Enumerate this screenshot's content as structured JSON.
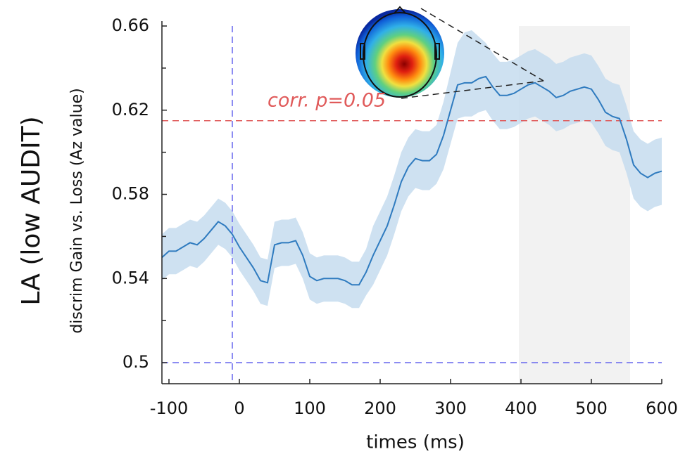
{
  "chart_data": {
    "type": "line",
    "title": "LA (low AUDIT)",
    "ylabel": "discrim Gain vs. Loss (Az value)",
    "xlabel": "times (ms)",
    "annotation": "corr. p=0.05",
    "xlim": [
      -110,
      600
    ],
    "xticks": [
      -100,
      0,
      100,
      200,
      300,
      400,
      500,
      600
    ],
    "ylim": [
      0.49,
      0.66
    ],
    "yticks": [
      0.5,
      0.54,
      0.58,
      0.62,
      0.66
    ],
    "yminor": [
      0.52,
      0.56,
      0.6,
      0.64
    ],
    "hlines": [
      {
        "value": 0.615,
        "color": "#e05a5a"
      },
      {
        "value": 0.5,
        "color": "#6666ee"
      }
    ],
    "vlines": [
      {
        "value": -10,
        "color": "#6666ee"
      }
    ],
    "shaded": {
      "range": [
        397,
        555
      ],
      "color": "#f2f2f2"
    },
    "x": [
      -110,
      -100,
      -90,
      -80,
      -70,
      -60,
      -50,
      -40,
      -30,
      -20,
      -10,
      0,
      10,
      20,
      30,
      40,
      50,
      60,
      70,
      80,
      90,
      100,
      110,
      120,
      130,
      140,
      150,
      160,
      170,
      180,
      190,
      200,
      210,
      220,
      230,
      240,
      250,
      260,
      270,
      280,
      290,
      300,
      310,
      320,
      330,
      340,
      350,
      360,
      370,
      380,
      390,
      400,
      410,
      420,
      430,
      440,
      450,
      460,
      470,
      480,
      490,
      500,
      510,
      520,
      530,
      540,
      550,
      560,
      570,
      580,
      590,
      600
    ],
    "series": [
      {
        "color": "#2f7bbf",
        "band_color": "#c6dcef",
        "values": [
          0.55,
          0.553,
          0.553,
          0.555,
          0.557,
          0.556,
          0.559,
          0.563,
          0.567,
          0.565,
          0.561,
          0.555,
          0.55,
          0.545,
          0.539,
          0.538,
          0.556,
          0.557,
          0.557,
          0.558,
          0.551,
          0.541,
          0.539,
          0.54,
          0.54,
          0.54,
          0.539,
          0.537,
          0.537,
          0.543,
          0.551,
          0.558,
          0.565,
          0.575,
          0.586,
          0.593,
          0.597,
          0.596,
          0.596,
          0.599,
          0.608,
          0.62,
          0.632,
          0.633,
          0.633,
          0.635,
          0.636,
          0.631,
          0.627,
          0.627,
          0.628,
          0.63,
          0.632,
          0.633,
          0.631,
          0.629,
          0.626,
          0.627,
          0.629,
          0.63,
          0.631,
          0.63,
          0.625,
          0.619,
          0.617,
          0.616,
          0.606,
          0.594,
          0.59,
          0.588,
          0.59,
          0.591
        ],
        "upper": [
          0.561,
          0.564,
          0.564,
          0.566,
          0.568,
          0.567,
          0.57,
          0.574,
          0.578,
          0.576,
          0.572,
          0.566,
          0.561,
          0.556,
          0.55,
          0.549,
          0.567,
          0.568,
          0.568,
          0.569,
          0.562,
          0.552,
          0.55,
          0.551,
          0.551,
          0.551,
          0.55,
          0.548,
          0.548,
          0.554,
          0.565,
          0.572,
          0.579,
          0.589,
          0.6,
          0.607,
          0.611,
          0.61,
          0.61,
          0.613,
          0.624,
          0.638,
          0.652,
          0.657,
          0.658,
          0.655,
          0.652,
          0.647,
          0.643,
          0.643,
          0.644,
          0.646,
          0.648,
          0.649,
          0.647,
          0.645,
          0.642,
          0.643,
          0.645,
          0.646,
          0.647,
          0.646,
          0.641,
          0.635,
          0.633,
          0.632,
          0.622,
          0.61,
          0.606,
          0.604,
          0.606,
          0.607
        ],
        "lower": [
          0.539,
          0.542,
          0.542,
          0.544,
          0.546,
          0.545,
          0.548,
          0.552,
          0.556,
          0.554,
          0.55,
          0.544,
          0.539,
          0.534,
          0.528,
          0.527,
          0.545,
          0.546,
          0.546,
          0.547,
          0.54,
          0.53,
          0.528,
          0.529,
          0.529,
          0.529,
          0.528,
          0.526,
          0.526,
          0.532,
          0.537,
          0.544,
          0.551,
          0.561,
          0.572,
          0.579,
          0.583,
          0.582,
          0.582,
          0.585,
          0.592,
          0.604,
          0.616,
          0.617,
          0.617,
          0.619,
          0.62,
          0.615,
          0.611,
          0.611,
          0.612,
          0.614,
          0.616,
          0.617,
          0.615,
          0.613,
          0.61,
          0.611,
          0.613,
          0.614,
          0.615,
          0.614,
          0.609,
          0.603,
          0.601,
          0.6,
          0.59,
          0.578,
          0.574,
          0.572,
          0.574,
          0.575
        ]
      }
    ]
  }
}
